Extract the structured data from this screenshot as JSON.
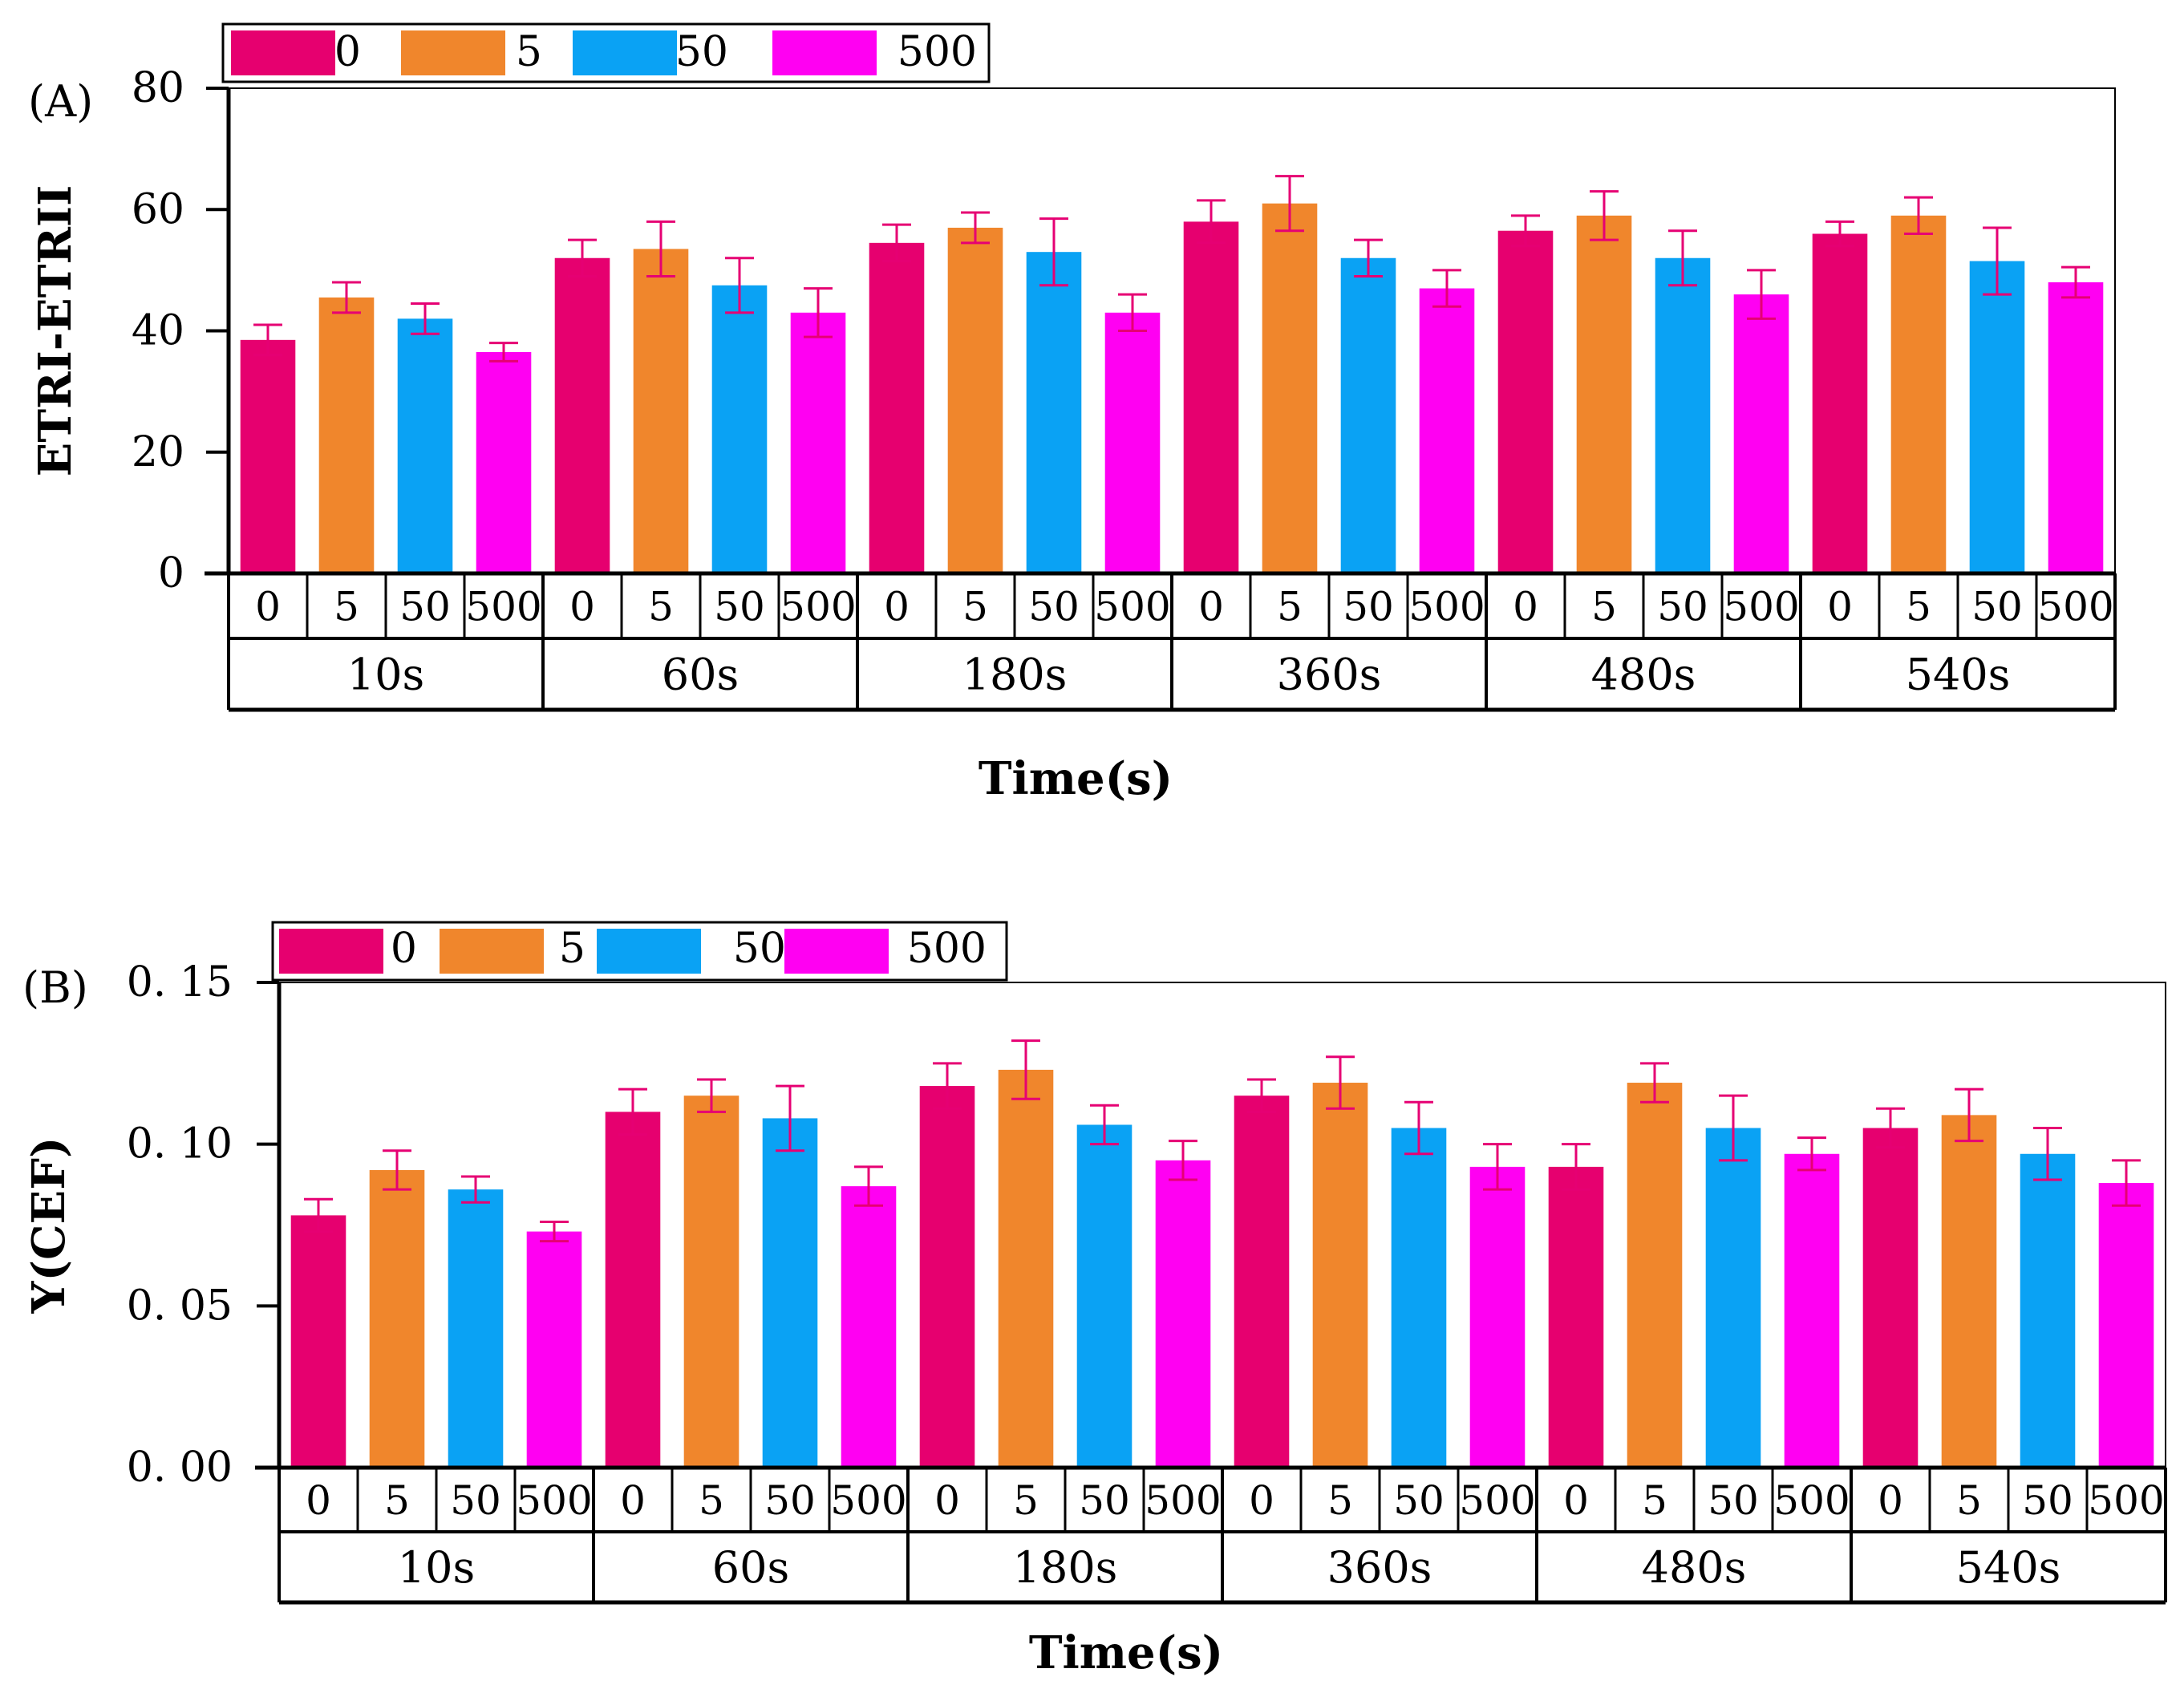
{
  "colors": {
    "0": "#e6006f",
    "5": "#f0862c",
    "50": "#0aa2f4",
    "500": "#ff00f2",
    "error_bar": "#e60073"
  },
  "chart_data": [
    {
      "type": "bar",
      "panel_label": "(A)",
      "ylabel": "ETRI-ETRII",
      "xlabel": "Time(s)",
      "ylim": [
        0,
        80
      ],
      "yticks": [
        "0",
        "20",
        "40",
        "60",
        "80"
      ],
      "ytick_values": [
        0,
        20,
        40,
        60,
        80
      ],
      "legend": [
        "0",
        "5",
        "50",
        "500"
      ],
      "legend_position": "top-left",
      "groups": [
        "10s",
        "60s",
        "180s",
        "360s",
        "480s",
        "540s"
      ],
      "sub_categories": [
        "0",
        "5",
        "50",
        "500"
      ],
      "series": [
        {
          "name": "0",
          "values": [
            38.5,
            52.0,
            54.5,
            58.0,
            56.5,
            56.0
          ],
          "errors": [
            2.5,
            3.0,
            3.0,
            3.5,
            2.5,
            2.0
          ]
        },
        {
          "name": "5",
          "values": [
            45.5,
            53.5,
            57.0,
            61.0,
            59.0,
            59.0
          ],
          "errors": [
            2.5,
            4.5,
            2.5,
            4.5,
            4.0,
            3.0
          ]
        },
        {
          "name": "50",
          "values": [
            42.0,
            47.5,
            53.0,
            52.0,
            52.0,
            51.5
          ],
          "errors": [
            2.5,
            4.5,
            5.5,
            3.0,
            4.5,
            5.5
          ]
        },
        {
          "name": "500",
          "values": [
            36.5,
            43.0,
            43.0,
            47.0,
            46.0,
            48.0
          ],
          "errors": [
            1.5,
            4.0,
            3.0,
            3.0,
            4.0,
            2.5
          ]
        }
      ]
    },
    {
      "type": "bar",
      "panel_label": "(B)",
      "ylabel": "Y(CEF)",
      "xlabel": "Time(s)",
      "ylim": [
        0,
        0.15
      ],
      "yticks": [
        "0. 00",
        "0. 05",
        "0. 10",
        "0. 15"
      ],
      "ytick_values": [
        0,
        0.05,
        0.1,
        0.15
      ],
      "legend": [
        "0",
        "5",
        "50",
        "500"
      ],
      "legend_position": "top-left",
      "groups": [
        "10s",
        "60s",
        "180s",
        "360s",
        "480s",
        "540s"
      ],
      "sub_categories": [
        "0",
        "5",
        "50",
        "500"
      ],
      "series": [
        {
          "name": "0",
          "values": [
            0.078,
            0.11,
            0.118,
            0.115,
            0.093,
            0.105
          ],
          "errors": [
            0.005,
            0.007,
            0.007,
            0.005,
            0.007,
            0.006
          ]
        },
        {
          "name": "5",
          "values": [
            0.092,
            0.115,
            0.123,
            0.119,
            0.119,
            0.109
          ],
          "errors": [
            0.006,
            0.005,
            0.009,
            0.008,
            0.006,
            0.008
          ]
        },
        {
          "name": "50",
          "values": [
            0.086,
            0.108,
            0.106,
            0.105,
            0.105,
            0.097
          ],
          "errors": [
            0.004,
            0.01,
            0.006,
            0.008,
            0.01,
            0.008
          ]
        },
        {
          "name": "500",
          "values": [
            0.073,
            0.087,
            0.095,
            0.093,
            0.097,
            0.088
          ],
          "errors": [
            0.003,
            0.006,
            0.006,
            0.007,
            0.005,
            0.007
          ]
        }
      ]
    }
  ]
}
